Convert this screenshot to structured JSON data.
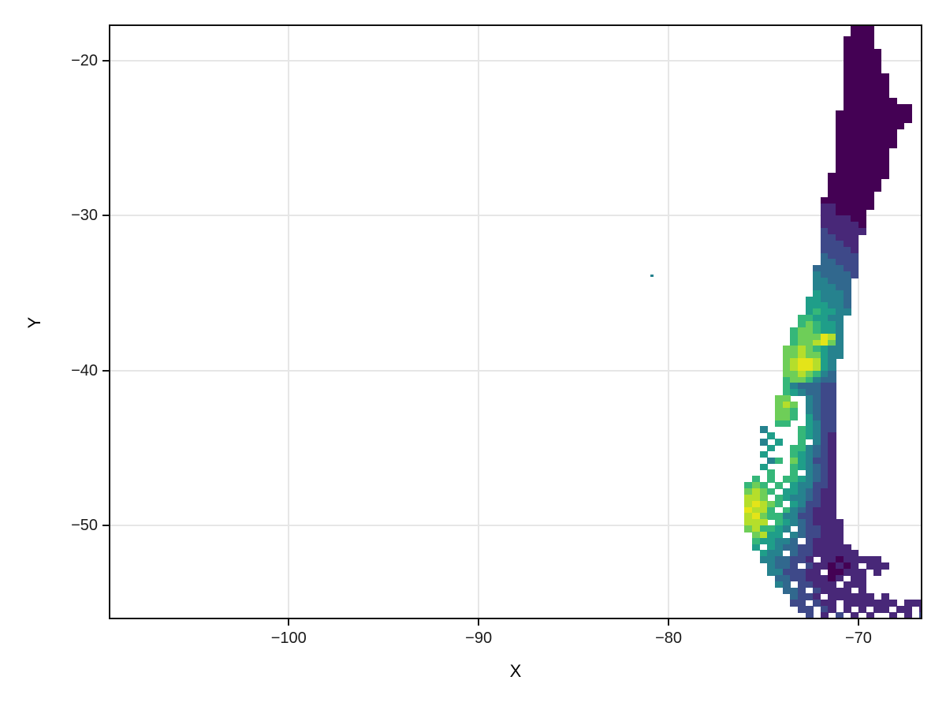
{
  "figure": {
    "background": "#ffffff",
    "panel": {
      "background": "#ffffff",
      "border_color": "#101010",
      "grid_color": "#e6e6e6",
      "grid": "major on, light gray"
    },
    "x_axis": {
      "label": "X",
      "tick_labels": [
        "−100",
        "−90",
        "−80",
        "−70"
      ],
      "tick_values": [
        -100,
        -90,
        -80,
        -70
      ],
      "range": [
        -109.39,
        -66.72
      ]
    },
    "y_axis": {
      "label": "Y",
      "tick_labels": [
        "−20",
        "−30",
        "−40",
        "−50"
      ],
      "tick_values": [
        -20,
        -30,
        -40,
        -50
      ],
      "range": [
        -55.96,
        -17.75
      ]
    }
  },
  "chart_data": {
    "type": "heatmap",
    "title": "",
    "xlabel": "X",
    "ylabel": "Y",
    "legend": "none shown",
    "description": "Raster map of Chile in longitude/latitude, viridis colormap: dark purple (level 0, low) in the arid north and Patagonian east/south, through blue and teal, to green and yellow (level 9, high) around lat -38 to -40 and the Patagonian ice field near lon -75.5 lat -48 to -50. One isolated teal cell (Juan Fernandez Islands) near lon -81, lat -33.9.",
    "x_range": [
      -109.39,
      -66.72
    ],
    "y_range": [
      -55.96,
      -17.75
    ],
    "grid_origin": {
      "lon": -76.0,
      "lat": -17.6
    },
    "cell_size_deg": 0.4,
    "palette": [
      "#440154",
      "#482878",
      "#3e4989",
      "#31688e",
      "#26828e",
      "#1f9e89",
      "#35b779",
      "#6ece58",
      "#b5de2b",
      "#e4e419"
    ],
    "palette_meaning": "index 0 = lowest value (dark purple) ... index 9 = highest value (yellow)",
    "rows": [
      "..............000.......",
      "..............000.......",
      ".............0000.......",
      ".............0000.......",
      ".............00000......",
      ".............00000......",
      ".............00000......",
      ".............00000......",
      ".............000000.....",
      ".............000000.....",
      ".............000000.....",
      ".............000000.....",
      ".............0000000....",
      ".............000000000..",
      "............0000000000..",
      "............0000000000..",
      "............000000000...",
      "............00000000....",
      "............00000000....",
      "............00000000....",
      "............0000000.....",
      "............0000000.....",
      "............0000000.....",
      "............0000000.....",
      "...........00000000.....",
      "...........0000000......",
      "...........0000000......",
      "...........000000.......",
      "..........0000000.......",
      "..........1100000.......",
      "..........110000........",
      "..........111100........",
      "..........111110........",
      "..........211111........",
      "..........22111.........",
      "..........22211.........",
      "..........22221.........",
      "..........32222.........",
      "..........33222.........",
      ".........333322.........",
      ".........433332.........",
      ".........44333..........",
      ".........44433..........",
      ".........54443..........",
      "........554443..........",
      "........555443..........",
      "........565544..........",
      ".......665544...........",
      ".......676554...........",
      "......6776554...........",
      "......6777984...........",
      "......6778974...........",
      ".....77876544...........",
      ".....77877544...........",
      ".....7899854............",
      ".....7899854............",
      ".....7787643............",
      ".....6776433............",
      ".....6433322............",
      ".....6543322............",
      "....77..4322............",
      "....787.4322............",
      "....776.4322............",
      "....776.5322............",
      "....66..5422............",
      "..4....65422............",
      "...5...65421............",
      "..4.5..6.421............",
      "...5..664321............",
      "..5...654321............",
      "...46.754221............",
      "..5...654321............",
      "...6..6.4321............",
      ".6.6.6654321............",
      "676.6.544221............",
      "7876.5543211............",
      "887.65443211............",
      "89876.542211............",
      "9886.6432111............",
      "897664422111............",
      "888.654321111...........",
      "786654.322111...........",
      ".7855.4322111...........",
      ".655443.21111...........",
      ".5.54332211111..........",
      "..544.322111111.........",
      "..4433221.11011111......",
      "...4332.2110101.111.....",
      "...4422211.00111.1......",
      "....332211101.11........",
      "....43.22111.111........",
      ".....332.21111.1........",
      "......3221.111111.1.....",
      "......22.211.1111111.111",
      ".......22.21.1.1.11.11.1",
      "........2.1.2.1.1..1.1.2"
    ],
    "islands": [
      {
        "name": "juan-fernandez-cell",
        "lon": -80.95,
        "lat": -33.78,
        "level": 4,
        "size_deg": 0.18
      }
    ]
  }
}
